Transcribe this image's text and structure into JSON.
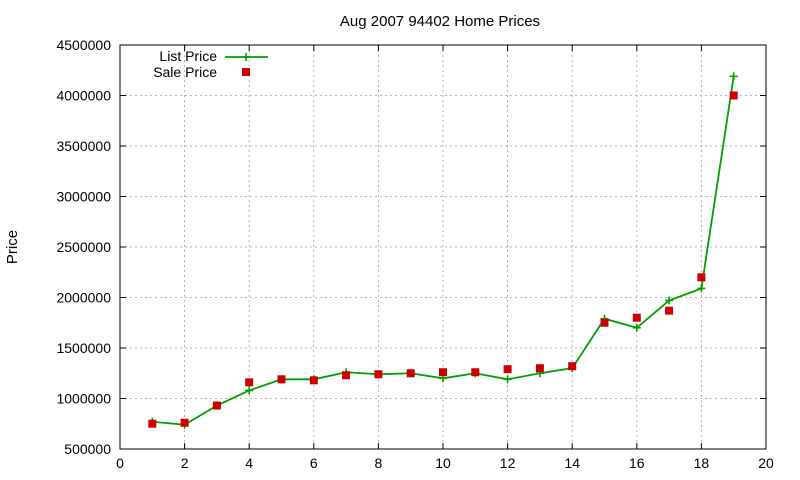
{
  "chart_data": {
    "type": "line",
    "title": "Aug 2007 94402 Home Prices",
    "xlabel": "",
    "ylabel": "Price",
    "xlim": [
      0,
      20
    ],
    "ylim": [
      500000,
      4500000
    ],
    "x_ticks": [
      0,
      2,
      4,
      6,
      8,
      10,
      12,
      14,
      16,
      18,
      20
    ],
    "y_ticks": [
      500000,
      1000000,
      1500000,
      2000000,
      2500000,
      3000000,
      3500000,
      4000000,
      4500000
    ],
    "grid": true,
    "legend_position": "top-left",
    "series": [
      {
        "name": "List Price",
        "style": "line+plus",
        "color": "#00a000",
        "points": [
          [
            1,
            770000
          ],
          [
            2,
            740000
          ],
          [
            3,
            930000
          ],
          [
            4,
            1080000
          ],
          [
            5,
            1190000
          ],
          [
            6,
            1190000
          ],
          [
            7,
            1260000
          ],
          [
            8,
            1240000
          ],
          [
            9,
            1250000
          ],
          [
            10,
            1200000
          ],
          [
            11,
            1250000
          ],
          [
            12,
            1190000
          ],
          [
            13,
            1250000
          ],
          [
            14,
            1300000
          ],
          [
            15,
            1790000
          ],
          [
            16,
            1700000
          ],
          [
            17,
            1970000
          ],
          [
            18,
            2090000
          ],
          [
            19,
            4190000
          ]
        ]
      },
      {
        "name": "Sale Price",
        "style": "square",
        "color": "#cc0000",
        "points": [
          [
            1,
            750000
          ],
          [
            2,
            760000
          ],
          [
            3,
            930000
          ],
          [
            4,
            1160000
          ],
          [
            5,
            1190000
          ],
          [
            6,
            1180000
          ],
          [
            7,
            1230000
          ],
          [
            8,
            1240000
          ],
          [
            9,
            1250000
          ],
          [
            10,
            1260000
          ],
          [
            11,
            1260000
          ],
          [
            12,
            1290000
          ],
          [
            13,
            1300000
          ],
          [
            14,
            1320000
          ],
          [
            15,
            1750000
          ],
          [
            16,
            1800000
          ],
          [
            17,
            1870000
          ],
          [
            18,
            2200000
          ],
          [
            19,
            4000000
          ]
        ]
      }
    ]
  }
}
